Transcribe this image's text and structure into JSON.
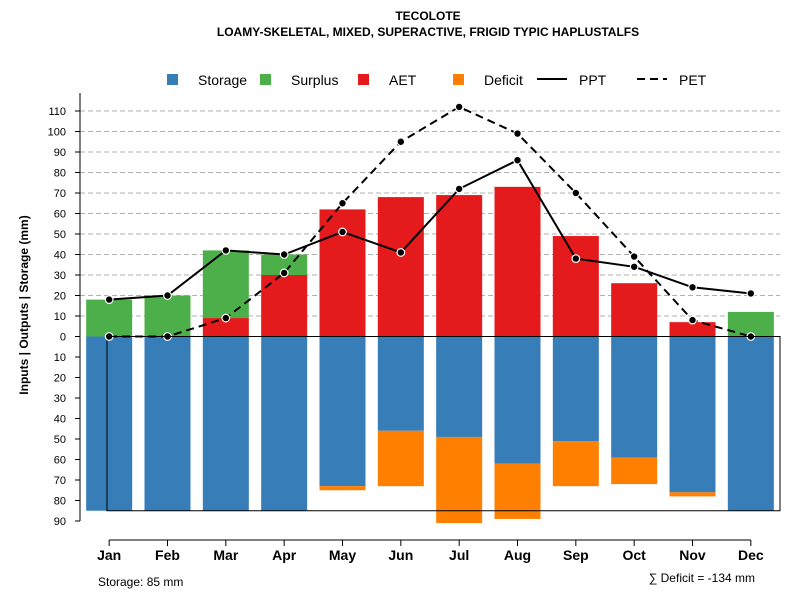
{
  "chart_data": {
    "type": "bar",
    "title": "TECOLOTE",
    "subtitle": "LOAMY-SKELETAL, MIXED, SUPERACTIVE, FRIGID TYPIC HAPLUSTALFS",
    "ylabel": "Inputs | Outputs | Storage    (mm)",
    "categories": [
      "Jan",
      "Feb",
      "Mar",
      "Apr",
      "May",
      "Jun",
      "Jul",
      "Aug",
      "Sep",
      "Oct",
      "Nov",
      "Dec"
    ],
    "ylim_upper": [
      0,
      110
    ],
    "ylim_lower": [
      0,
      90
    ],
    "yticks_upper": [
      "0",
      "10",
      "20",
      "30",
      "40",
      "50",
      "60",
      "70",
      "80",
      "90",
      "100",
      "110"
    ],
    "yticks_lower": [
      "10",
      "20",
      "30",
      "40",
      "50",
      "60",
      "70",
      "80",
      "90"
    ],
    "legend": [
      {
        "label": "Storage",
        "kind": "box",
        "color": "#377EB8"
      },
      {
        "label": "Surplus",
        "kind": "box",
        "color": "#4DAF4A"
      },
      {
        "label": "AET",
        "kind": "box",
        "color": "#E41A1C"
      },
      {
        "label": "Deficit",
        "kind": "box",
        "color": "#FF7F00"
      },
      {
        "label": "PPT",
        "kind": "solid",
        "color": "#000000"
      },
      {
        "label": "PET",
        "kind": "dashed",
        "color": "#000000"
      }
    ],
    "series": [
      {
        "name": "AET",
        "values": [
          0,
          0,
          9,
          30,
          62,
          68,
          69,
          73,
          49,
          26,
          7,
          0
        ]
      },
      {
        "name": "Surplus",
        "values": [
          18,
          20,
          33,
          10,
          0,
          0,
          0,
          0,
          0,
          0,
          0,
          12
        ]
      },
      {
        "name": "Storage",
        "values": [
          85,
          85,
          85,
          85,
          73,
          46,
          49,
          62,
          51,
          59,
          76,
          85
        ]
      },
      {
        "name": "Deficit",
        "values": [
          0,
          0,
          0,
          0,
          2,
          27,
          42,
          27,
          22,
          13,
          2,
          0
        ]
      },
      {
        "name": "PPT",
        "values": [
          18,
          20,
          42,
          40,
          51,
          41,
          72,
          86,
          38,
          34,
          24,
          21
        ]
      },
      {
        "name": "PET",
        "values": [
          0,
          0,
          9,
          31,
          65,
          95,
          112,
          99,
          70,
          39,
          8,
          0
        ]
      }
    ],
    "storage_capacity": 85,
    "colors": {
      "storage": "#377EB8",
      "surplus": "#4DAF4A",
      "aet": "#E41A1C",
      "deficit": "#FF7F00",
      "grid": "#B0B0B0"
    }
  },
  "footer": {
    "storage_label": "Storage: 85 mm",
    "deficit_label": "∑ Deficit = -134 mm"
  }
}
